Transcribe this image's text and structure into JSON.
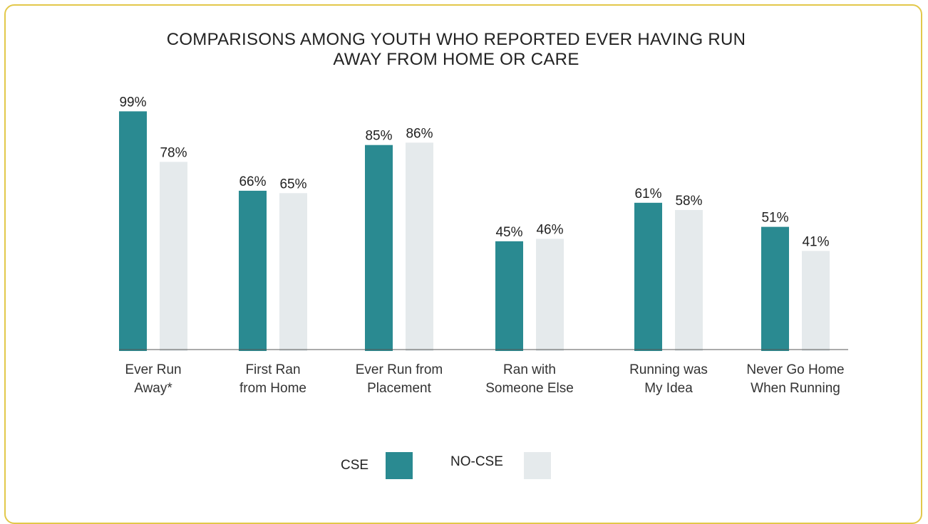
{
  "chart_data": {
    "type": "bar",
    "title_lines": [
      "COMPARISONS AMONG YOUTH WHO REPORTED EVER HAVING RUN",
      "AWAY FROM HOME OR CARE"
    ],
    "categories": [
      [
        "Ever Run",
        "Away*"
      ],
      [
        "First Ran",
        "from Home"
      ],
      [
        "Ever Run from",
        "Placement"
      ],
      [
        "Ran with",
        "Someone Else"
      ],
      [
        "Running was",
        "My Idea"
      ],
      [
        "Never Go Home",
        "When Running"
      ]
    ],
    "series": [
      {
        "name": "CSE",
        "color": "#2a8a91",
        "values": [
          99,
          66,
          85,
          45,
          61,
          51
        ],
        "labels": [
          "99%",
          "66%",
          "85%",
          "45%",
          "61%",
          "51%"
        ]
      },
      {
        "name": "NO-CSE",
        "color": "#e5eaec",
        "values": [
          78,
          65,
          86,
          46,
          58,
          41
        ],
        "labels": [
          "78%",
          "65%",
          "86%",
          "46%",
          "58%",
          "41%"
        ]
      }
    ],
    "ylim": [
      0,
      100
    ],
    "grid": false,
    "legend_position": "bottom-center"
  }
}
